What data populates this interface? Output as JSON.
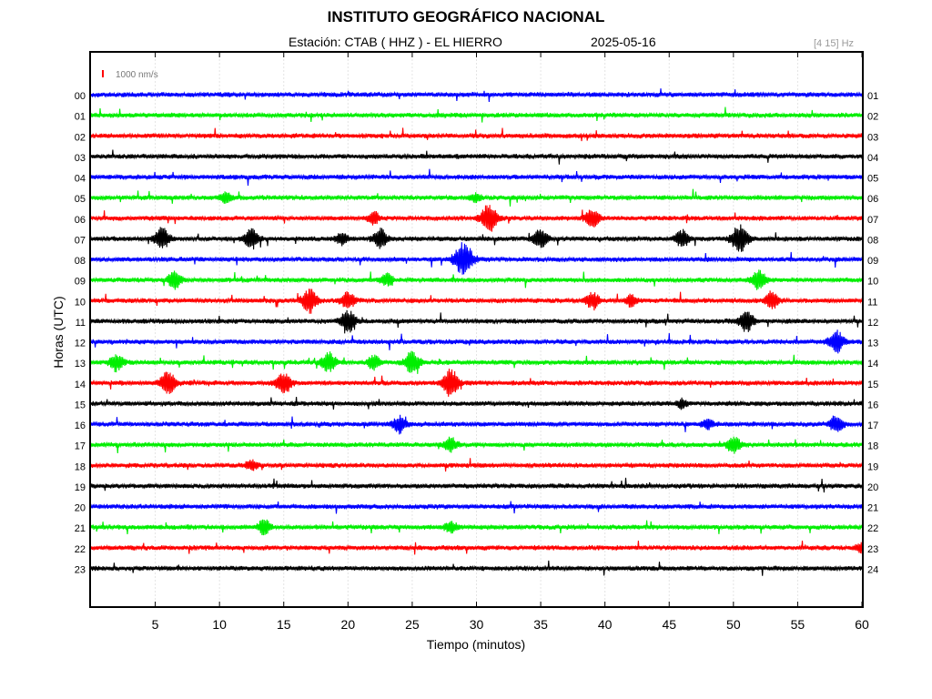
{
  "header": {
    "institution": "INSTITUTO GEOGRÁFICO NACIONAL",
    "station": "Estación:  CTAB ( HHZ ) - EL HIERRO",
    "date": "2025-05-16",
    "filter_band": "[4 15] Hz"
  },
  "chart_data": {
    "type": "line",
    "title": "INSTITUTO GEOGRÁFICO NACIONAL",
    "xlabel": "Tiempo (minutos)",
    "ylabel": "Horas (UTC)",
    "xlim": [
      0,
      60
    ],
    "x_ticks": [
      5,
      10,
      15,
      20,
      25,
      30,
      35,
      40,
      45,
      50,
      55,
      60
    ],
    "grid": true,
    "scale_bar": {
      "label": "1000 nm/s",
      "color": "#ff0000"
    },
    "trace_colors": [
      "#0000ff",
      "#00ee00",
      "#ff0000",
      "#000000"
    ],
    "left_hour_labels": [
      "00",
      "01",
      "02",
      "03",
      "04",
      "05",
      "06",
      "07",
      "08",
      "09",
      "10",
      "11",
      "12",
      "13",
      "14",
      "15",
      "16",
      "17",
      "18",
      "19",
      "20",
      "21",
      "22",
      "23"
    ],
    "right_hour_labels": [
      "01",
      "02",
      "03",
      "04",
      "05",
      "06",
      "07",
      "08",
      "09",
      "10",
      "11",
      "12",
      "13",
      "14",
      "15",
      "16",
      "17",
      "18",
      "19",
      "20",
      "21",
      "22",
      "23",
      "24"
    ],
    "events": [
      {
        "hour": 5,
        "minute": 10.5,
        "amplitude": 0.6
      },
      {
        "hour": 5,
        "minute": 30,
        "amplitude": 0.5
      },
      {
        "hour": 6,
        "minute": 22,
        "amplitude": 0.7
      },
      {
        "hour": 6,
        "minute": 31,
        "amplitude": 1.6
      },
      {
        "hour": 6,
        "minute": 39,
        "amplitude": 1.1
      },
      {
        "hour": 7,
        "minute": 5.5,
        "amplitude": 1.3
      },
      {
        "hour": 7,
        "minute": 12.5,
        "amplitude": 1.2
      },
      {
        "hour": 7,
        "minute": 19.5,
        "amplitude": 0.7
      },
      {
        "hour": 7,
        "minute": 22.5,
        "amplitude": 1.1
      },
      {
        "hour": 7,
        "minute": 35,
        "amplitude": 1.1
      },
      {
        "hour": 7,
        "minute": 46,
        "amplitude": 1.0
      },
      {
        "hour": 7,
        "minute": 50.5,
        "amplitude": 1.6
      },
      {
        "hour": 8,
        "minute": 29,
        "amplitude": 2.0
      },
      {
        "hour": 9,
        "minute": 6.5,
        "amplitude": 1.0
      },
      {
        "hour": 9,
        "minute": 23,
        "amplitude": 0.7
      },
      {
        "hour": 9,
        "minute": 52,
        "amplitude": 1.2
      },
      {
        "hour": 10,
        "minute": 17,
        "amplitude": 1.4
      },
      {
        "hour": 10,
        "minute": 20,
        "amplitude": 1.0
      },
      {
        "hour": 10,
        "minute": 39,
        "amplitude": 1.0
      },
      {
        "hour": 10,
        "minute": 42,
        "amplitude": 0.6
      },
      {
        "hour": 10,
        "minute": 53,
        "amplitude": 1.0
      },
      {
        "hour": 11,
        "minute": 20,
        "amplitude": 1.3
      },
      {
        "hour": 11,
        "minute": 51,
        "amplitude": 1.2
      },
      {
        "hour": 12,
        "minute": 58,
        "amplitude": 1.3
      },
      {
        "hour": 13,
        "minute": 2,
        "amplitude": 1.0
      },
      {
        "hour": 13,
        "minute": 18.5,
        "amplitude": 1.2
      },
      {
        "hour": 13,
        "minute": 22,
        "amplitude": 0.8
      },
      {
        "hour": 13,
        "minute": 25,
        "amplitude": 1.3
      },
      {
        "hour": 14,
        "minute": 6,
        "amplitude": 1.4
      },
      {
        "hour": 14,
        "minute": 15,
        "amplitude": 1.3
      },
      {
        "hour": 14,
        "minute": 28,
        "amplitude": 1.6
      },
      {
        "hour": 15,
        "minute": 46,
        "amplitude": 0.5
      },
      {
        "hour": 16,
        "minute": 24,
        "amplitude": 1.0
      },
      {
        "hour": 16,
        "minute": 48,
        "amplitude": 0.6
      },
      {
        "hour": 16,
        "minute": 58,
        "amplitude": 1.0
      },
      {
        "hour": 17,
        "minute": 28,
        "amplitude": 0.8
      },
      {
        "hour": 17,
        "minute": 50,
        "amplitude": 1.0
      },
      {
        "hour": 18,
        "minute": 12.5,
        "amplitude": 0.6
      },
      {
        "hour": 21,
        "minute": 13.5,
        "amplitude": 0.9
      },
      {
        "hour": 21,
        "minute": 28,
        "amplitude": 0.7
      },
      {
        "hour": 22,
        "minute": 60,
        "amplitude": 0.6
      }
    ]
  }
}
